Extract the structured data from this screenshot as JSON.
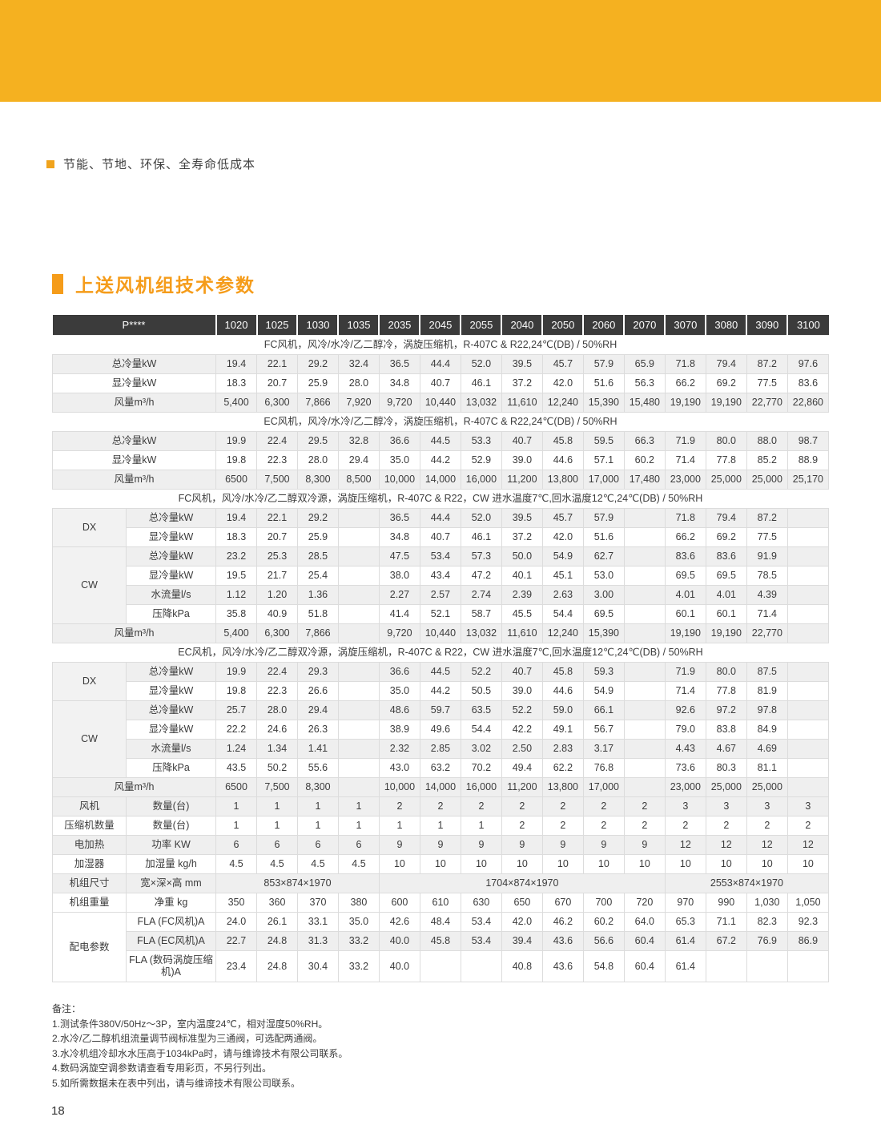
{
  "colors": {
    "band_orange": "#F5B120",
    "accent_orange": "#F0A31C",
    "title_orange": "#F59C1A",
    "header_dark": "#3B3B3B",
    "row_shade": "#EFEFEF"
  },
  "feature_bullet": "节能、节地、环保、全寿命低成本",
  "section_title": "上送风机组技术参数",
  "table": {
    "model_header_label": "P****",
    "models": [
      "1020",
      "1025",
      "1030",
      "1035",
      "2035",
      "2045",
      "2055",
      "2040",
      "2050",
      "2060",
      "2070",
      "3070",
      "3080",
      "3090",
      "3100"
    ],
    "rows": [
      {
        "type": "section",
        "text": "FC风机，风冷/水冷/乙二醇冷，涡旋压缩机，R-407C & R22,24℃(DB) / 50%RH"
      },
      {
        "type": "data",
        "label": "总冷量kW",
        "label_span": 2,
        "shaded": true,
        "values": [
          "19.4",
          "22.1",
          "29.2",
          "32.4",
          "36.5",
          "44.4",
          "52.0",
          "39.5",
          "45.7",
          "57.9",
          "65.9",
          "71.8",
          "79.4",
          "87.2",
          "97.6"
        ]
      },
      {
        "type": "data",
        "label": "显冷量kW",
        "label_span": 2,
        "shaded": false,
        "values": [
          "18.3",
          "20.7",
          "25.9",
          "28.0",
          "34.8",
          "40.7",
          "46.1",
          "37.2",
          "42.0",
          "51.6",
          "56.3",
          "66.2",
          "69.2",
          "77.5",
          "83.6"
        ]
      },
      {
        "type": "data",
        "label": "风量m³/h",
        "label_span": 2,
        "shaded": true,
        "values": [
          "5,400",
          "6,300",
          "7,866",
          "7,920",
          "9,720",
          "10,440",
          "13,032",
          "11,610",
          "12,240",
          "15,390",
          "15,480",
          "19,190",
          "19,190",
          "22,770",
          "22,860"
        ]
      },
      {
        "type": "section",
        "text": "EC风机，风冷/水冷/乙二醇冷，涡旋压缩机，R-407C & R22,24℃(DB) / 50%RH"
      },
      {
        "type": "data",
        "label": "总冷量kW",
        "label_span": 2,
        "shaded": true,
        "values": [
          "19.9",
          "22.4",
          "29.5",
          "32.8",
          "36.6",
          "44.5",
          "53.3",
          "40.7",
          "45.8",
          "59.5",
          "66.3",
          "71.9",
          "80.0",
          "88.0",
          "98.7"
        ]
      },
      {
        "type": "data",
        "label": "显冷量kW",
        "label_span": 2,
        "shaded": false,
        "values": [
          "19.8",
          "22.3",
          "28.0",
          "29.4",
          "35.0",
          "44.2",
          "52.9",
          "39.0",
          "44.6",
          "57.1",
          "60.2",
          "71.4",
          "77.8",
          "85.2",
          "88.9"
        ]
      },
      {
        "type": "data",
        "label": "风量m³/h",
        "label_span": 2,
        "shaded": true,
        "values": [
          "6500",
          "7,500",
          "8,300",
          "8,500",
          "10,000",
          "14,000",
          "16,000",
          "11,200",
          "13,800",
          "17,000",
          "17,480",
          "23,000",
          "25,000",
          "25,000",
          "25,170"
        ]
      },
      {
        "type": "section",
        "text": "FC风机，风冷/水冷/乙二醇双冷源，涡旋压缩机，R-407C & R22，CW 进水温度7℃,回水温度12℃,24℃(DB) / 50%RH"
      },
      {
        "type": "data",
        "group": "DX",
        "group_rowspan": 2,
        "group_shade": true,
        "label": "总冷量kW",
        "label_span": 1,
        "shaded": true,
        "values": [
          "19.4",
          "22.1",
          "29.2",
          "",
          "36.5",
          "44.4",
          "52.0",
          "39.5",
          "45.7",
          "57.9",
          "",
          "71.8",
          "79.4",
          "87.2",
          ""
        ]
      },
      {
        "type": "data",
        "label": "显冷量kW",
        "label_span": 1,
        "shaded": false,
        "values": [
          "18.3",
          "20.7",
          "25.9",
          "",
          "34.8",
          "40.7",
          "46.1",
          "37.2",
          "42.0",
          "51.6",
          "",
          "66.2",
          "69.2",
          "77.5",
          ""
        ]
      },
      {
        "type": "data",
        "group": "CW",
        "group_rowspan": 4,
        "group_shade": true,
        "label": "总冷量kW",
        "label_span": 1,
        "shaded": true,
        "values": [
          "23.2",
          "25.3",
          "28.5",
          "",
          "47.5",
          "53.4",
          "57.3",
          "50.0",
          "54.9",
          "62.7",
          "",
          "83.6",
          "83.6",
          "91.9",
          ""
        ]
      },
      {
        "type": "data",
        "label": "显冷量kW",
        "label_span": 1,
        "shaded": false,
        "values": [
          "19.5",
          "21.7",
          "25.4",
          "",
          "38.0",
          "43.4",
          "47.2",
          "40.1",
          "45.1",
          "53.0",
          "",
          "69.5",
          "69.5",
          "78.5",
          ""
        ]
      },
      {
        "type": "data",
        "label": "水流量l/s",
        "label_span": 1,
        "shaded": true,
        "values": [
          "1.12",
          "1.20",
          "1.36",
          "",
          "2.27",
          "2.57",
          "2.74",
          "2.39",
          "2.63",
          "3.00",
          "",
          "4.01",
          "4.01",
          "4.39",
          ""
        ]
      },
      {
        "type": "data",
        "label": "压降kPa",
        "label_span": 1,
        "shaded": false,
        "values": [
          "35.8",
          "40.9",
          "51.8",
          "",
          "41.4",
          "52.1",
          "58.7",
          "45.5",
          "54.4",
          "69.5",
          "",
          "60.1",
          "60.1",
          "71.4",
          ""
        ]
      },
      {
        "type": "data",
        "label": "风量m³/h",
        "label_span": 2,
        "shaded": true,
        "values": [
          "5,400",
          "6,300",
          "7,866",
          "",
          "9,720",
          "10,440",
          "13,032",
          "11,610",
          "12,240",
          "15,390",
          "",
          "19,190",
          "19,190",
          "22,770",
          ""
        ]
      },
      {
        "type": "section",
        "text": "EC风机，风冷/水冷/乙二醇双冷源，涡旋压缩机，R-407C & R22，CW 进水温度7℃,回水温度12℃,24℃(DB) / 50%RH"
      },
      {
        "type": "data",
        "group": "DX",
        "group_rowspan": 2,
        "group_shade": true,
        "label": "总冷量kW",
        "label_span": 1,
        "shaded": true,
        "values": [
          "19.9",
          "22.4",
          "29.3",
          "",
          "36.6",
          "44.5",
          "52.2",
          "40.7",
          "45.8",
          "59.3",
          "",
          "71.9",
          "80.0",
          "87.5",
          ""
        ]
      },
      {
        "type": "data",
        "label": "显冷量kW",
        "label_span": 1,
        "shaded": false,
        "values": [
          "19.8",
          "22.3",
          "26.6",
          "",
          "35.0",
          "44.2",
          "50.5",
          "39.0",
          "44.6",
          "54.9",
          "",
          "71.4",
          "77.8",
          "81.9",
          ""
        ]
      },
      {
        "type": "data",
        "group": "CW",
        "group_rowspan": 4,
        "group_shade": true,
        "label": "总冷量kW",
        "label_span": 1,
        "shaded": true,
        "values": [
          "25.7",
          "28.0",
          "29.4",
          "",
          "48.6",
          "59.7",
          "63.5",
          "52.2",
          "59.0",
          "66.1",
          "",
          "92.6",
          "97.2",
          "97.8",
          ""
        ]
      },
      {
        "type": "data",
        "label": "显冷量kW",
        "label_span": 1,
        "shaded": false,
        "values": [
          "22.2",
          "24.6",
          "26.3",
          "",
          "38.9",
          "49.6",
          "54.4",
          "42.2",
          "49.1",
          "56.7",
          "",
          "79.0",
          "83.8",
          "84.9",
          ""
        ]
      },
      {
        "type": "data",
        "label": "水流量l/s",
        "label_span": 1,
        "shaded": true,
        "values": [
          "1.24",
          "1.34",
          "1.41",
          "",
          "2.32",
          "2.85",
          "3.02",
          "2.50",
          "2.83",
          "3.17",
          "",
          "4.43",
          "4.67",
          "4.69",
          ""
        ]
      },
      {
        "type": "data",
        "label": "压降kPa",
        "label_span": 1,
        "shaded": false,
        "values": [
          "43.5",
          "50.2",
          "55.6",
          "",
          "43.0",
          "63.2",
          "70.2",
          "49.4",
          "62.2",
          "76.8",
          "",
          "73.6",
          "80.3",
          "81.1",
          ""
        ]
      },
      {
        "type": "data",
        "label": "风量m³/h",
        "label_span": 2,
        "shaded": true,
        "values": [
          "6500",
          "7,500",
          "8,300",
          "",
          "10,000",
          "14,000",
          "16,000",
          "11,200",
          "13,800",
          "17,000",
          "",
          "23,000",
          "25,000",
          "25,000",
          ""
        ]
      },
      {
        "type": "data",
        "group": "风机",
        "group_rowspan": 1,
        "label": "数量(台)",
        "label_span": 1,
        "shaded": true,
        "values": [
          "1",
          "1",
          "1",
          "1",
          "2",
          "2",
          "2",
          "2",
          "2",
          "2",
          "2",
          "3",
          "3",
          "3",
          "3"
        ]
      },
      {
        "type": "data",
        "group": "压缩机数量",
        "group_rowspan": 1,
        "label": "数量(台)",
        "label_span": 1,
        "shaded": false,
        "values": [
          "1",
          "1",
          "1",
          "1",
          "1",
          "1",
          "1",
          "2",
          "2",
          "2",
          "2",
          "2",
          "2",
          "2",
          "2"
        ]
      },
      {
        "type": "data",
        "group": "电加热",
        "group_rowspan": 1,
        "label": "功率 KW",
        "label_span": 1,
        "shaded": true,
        "values": [
          "6",
          "6",
          "6",
          "6",
          "9",
          "9",
          "9",
          "9",
          "9",
          "9",
          "9",
          "12",
          "12",
          "12",
          "12"
        ]
      },
      {
        "type": "data",
        "group": "加湿器",
        "group_rowspan": 1,
        "label": "加湿量 kg/h",
        "label_span": 1,
        "shaded": false,
        "values": [
          "4.5",
          "4.5",
          "4.5",
          "4.5",
          "10",
          "10",
          "10",
          "10",
          "10",
          "10",
          "10",
          "10",
          "10",
          "10",
          "10"
        ]
      },
      {
        "type": "data",
        "group": "机组尺寸",
        "group_rowspan": 1,
        "label": "宽×深×高 mm",
        "label_span": 1,
        "shaded": true,
        "merged": [
          {
            "text": "853×874×1970",
            "span": 4
          },
          {
            "text": "1704×874×1970",
            "span": 7
          },
          {
            "text": "2553×874×1970",
            "span": 4
          }
        ]
      },
      {
        "type": "data",
        "group": "机组重量",
        "group_rowspan": 1,
        "label": "净重 kg",
        "label_span": 1,
        "shaded": false,
        "values": [
          "350",
          "360",
          "370",
          "380",
          "600",
          "610",
          "630",
          "650",
          "670",
          "700",
          "720",
          "970",
          "990",
          "1,030",
          "1,050"
        ]
      },
      {
        "type": "data",
        "group": "配电参数",
        "group_rowspan": 3,
        "group_shade": false,
        "label": "FLA (FC风机)A",
        "label_span": 1,
        "shaded": false,
        "values": [
          "24.0",
          "26.1",
          "33.1",
          "35.0",
          "42.6",
          "48.4",
          "53.4",
          "42.0",
          "46.2",
          "60.2",
          "64.0",
          "65.3",
          "71.1",
          "82.3",
          "92.3"
        ]
      },
      {
        "type": "data",
        "label": "FLA (EC风机)A",
        "label_span": 1,
        "shaded": true,
        "values": [
          "22.7",
          "24.8",
          "31.3",
          "33.2",
          "40.0",
          "45.8",
          "53.4",
          "39.4",
          "43.6",
          "56.6",
          "60.4",
          "61.4",
          "67.2",
          "76.9",
          "86.9"
        ]
      },
      {
        "type": "data",
        "label": "FLA (数码涡旋压缩机)A",
        "label_span": 1,
        "shaded": false,
        "values": [
          "23.4",
          "24.8",
          "30.4",
          "33.2",
          "40.0",
          "",
          "",
          "40.8",
          "43.6",
          "54.8",
          "60.4",
          "61.4",
          "",
          "",
          ""
        ]
      }
    ]
  },
  "notes": {
    "title": "备注：",
    "lines": [
      "1.测试条件380V/50Hz～3P，室内温度24℃，相对湿度50%RH。",
      "2.水冷/乙二醇机组流量调节阀标准型为三通阀，可选配两通阀。",
      "3.水冷机组冷却水水压高于1034kPa时，请与维谛技术有限公司联系。",
      "4.数码涡旋空调参数请查看专用彩页，不另行列出。",
      "5.如所需数据未在表中列出，请与维谛技术有限公司联系。"
    ]
  },
  "page": {
    "number": "18"
  }
}
